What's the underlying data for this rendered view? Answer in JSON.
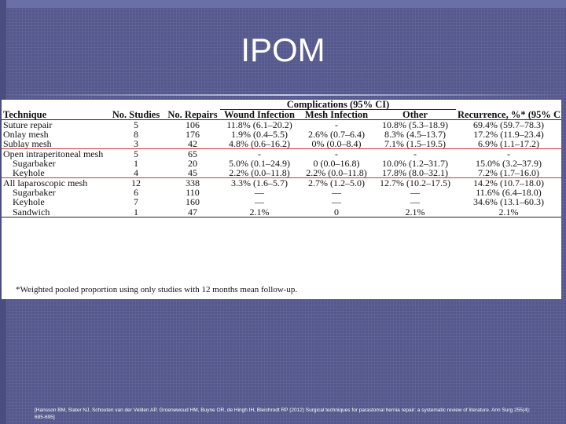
{
  "slide": {
    "title": "IPOM",
    "citation": "[Hansson BM, Slater NJ, Schouten van der Velden AP, Groenewoud HM, Buyne OR, de Hingh IH, Bleichrodt RP (2012) Surgical techniques for parastomal hernia repair: a systematic review of literature. Ann Surg 255(4): 685-695]"
  },
  "table": {
    "group_header": "Complications (95% CI)",
    "columns": [
      "Technique",
      "No. Studies",
      "No. Repairs",
      "Wound Infection",
      "Mesh Infection",
      "Other",
      "Recurrence, %* (95% CI)"
    ],
    "rows": [
      [
        "Suture repair",
        "5",
        "106",
        "11.8% (6.1–20.2)",
        "-",
        "10.8% (5.3–18.9)",
        "69.4% (59.7–78.3)"
      ],
      [
        "Onlay mesh",
        "8",
        "176",
        "1.9% (0.4–5.5)",
        "2.6% (0.7–6.4)",
        "8.3% (4.5–13.7)",
        "17.2% (11.9–23.4)"
      ],
      [
        "Sublay mesh",
        "3",
        "42",
        "4.8% (0.6–16.2)",
        "0% (0.0–8.4)",
        "7.1% (1.5–19.5)",
        "6.9% (1.1–17.2)"
      ],
      [
        "Open intraperitoneal mesh",
        "5",
        "65",
        "-",
        "-",
        "-",
        "-"
      ],
      [
        "Sugarbaker",
        "1",
        "20",
        "5.0% (0.1–24.9)",
        "0 (0.0–16.8)",
        "10.0% (1.2–31.7)",
        "15.0% (3.2–37.9)"
      ],
      [
        "Keyhole",
        "4",
        "45",
        "2.2% (0.0–11.8)",
        "2.2% (0.0–11.8)",
        "17.8% (8.0–32.1)",
        "7.2% (1.7–16.0)"
      ],
      [
        "All laparoscopic mesh",
        "12",
        "338",
        "3.3% (1.6–5.7)",
        "2.7% (1.2–5.0)",
        "12.7% (10.2–17.5)",
        "14.2% (10.7–18.0)"
      ],
      [
        "Sugarbaker",
        "6",
        "110",
        "—",
        "—",
        "—",
        "11.6% (6.4–18.0)"
      ],
      [
        "Keyhole",
        "7",
        "160",
        "—",
        "—",
        "—",
        "34.6% (13.1–60.3)"
      ],
      [
        "Sandwich",
        "1",
        "47",
        "2.1%",
        "0",
        "2.1%",
        "2.1%"
      ]
    ],
    "footnote": "*Weighted pooled proportion using only studies with 12 months mean follow-up."
  },
  "colors": {
    "background": "#55588c",
    "highlight_box": "#c23a3a"
  }
}
